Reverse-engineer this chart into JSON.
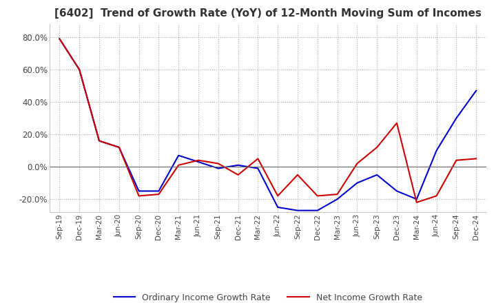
{
  "title": "[6402]  Trend of Growth Rate (YoY) of 12-Month Moving Sum of Incomes",
  "title_fontsize": 11,
  "background_color": "#ffffff",
  "grid_color": "#aaaaaa",
  "ylim": [
    -0.28,
    0.88
  ],
  "yticks": [
    -0.2,
    0.0,
    0.2,
    0.4,
    0.6,
    0.8
  ],
  "x_labels": [
    "Sep-19",
    "Dec-19",
    "Mar-20",
    "Jun-20",
    "Sep-20",
    "Dec-20",
    "Mar-21",
    "Jun-21",
    "Sep-21",
    "Dec-21",
    "Mar-22",
    "Jun-22",
    "Sep-22",
    "Dec-22",
    "Mar-23",
    "Jun-23",
    "Sep-23",
    "Dec-23",
    "Mar-24",
    "Jun-24",
    "Sep-24",
    "Dec-24"
  ],
  "ordinary_income": [
    0.79,
    0.6,
    0.16,
    0.12,
    -0.15,
    -0.15,
    0.07,
    0.03,
    -0.01,
    0.01,
    -0.01,
    -0.25,
    -0.27,
    -0.27,
    -0.2,
    -0.1,
    -0.05,
    -0.15,
    -0.2,
    0.1,
    0.3,
    0.47
  ],
  "net_income": [
    0.79,
    0.6,
    0.16,
    0.12,
    -0.18,
    -0.17,
    0.01,
    0.04,
    0.02,
    -0.05,
    0.05,
    -0.18,
    -0.05,
    -0.18,
    -0.17,
    0.02,
    0.12,
    0.27,
    -0.22,
    -0.18,
    0.04,
    0.05
  ],
  "ordinary_color": "#0000cc",
  "net_color": "#cc0000",
  "line_width": 1.5,
  "legend_labels": [
    "Ordinary Income Growth Rate",
    "Net Income Growth Rate"
  ]
}
